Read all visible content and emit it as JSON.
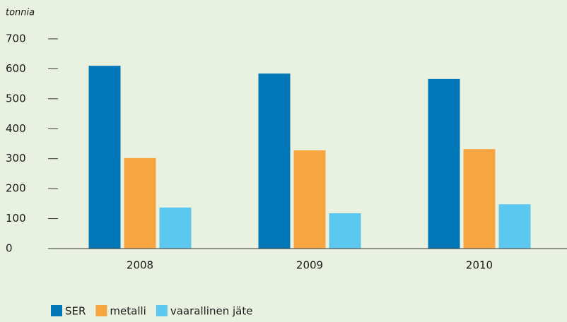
{
  "chart_data": {
    "type": "bar",
    "y_label": "tonnia",
    "categories": [
      "2008",
      "2009",
      "2010"
    ],
    "series": [
      {
        "name": "SER",
        "color": "#0077b6",
        "values": [
          610,
          584,
          566
        ]
      },
      {
        "name": "metalli",
        "color": "#f7a541",
        "values": [
          302,
          328,
          332
        ]
      },
      {
        "name": "vaarallinen jäte",
        "color": "#5bc8f0",
        "values": [
          137,
          118,
          148
        ]
      }
    ],
    "ylim": [
      0,
      700
    ],
    "yticks": [
      0,
      100,
      200,
      300,
      400,
      500,
      600,
      700
    ],
    "grid": false,
    "legend": "bottom-left"
  }
}
